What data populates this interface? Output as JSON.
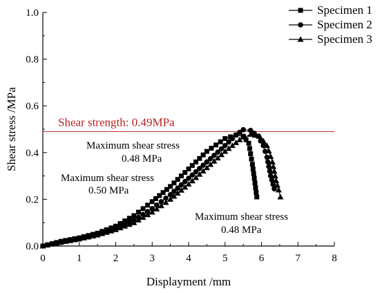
{
  "chart_data": {
    "type": "line",
    "xlabel": "Displayment /mm",
    "ylabel": "Shear stress /MPa",
    "xlim": [
      0,
      8
    ],
    "ylim": [
      0,
      1.0
    ],
    "x_ticks": [
      "0",
      "1",
      "2",
      "3",
      "4",
      "5",
      "6",
      "7",
      "8"
    ],
    "y_ticks": [
      "0.0",
      "0.2",
      "0.4",
      "0.6",
      "0.8",
      "1.0"
    ],
    "legend_position": "top-right",
    "grid": false,
    "series": [
      {
        "name": "Specimen 1",
        "marker": "square",
        "color": "#000000",
        "points": [
          [
            0,
            0
          ],
          [
            0.5,
            0.02
          ],
          [
            1,
            0.035
          ],
          [
            1.5,
            0.055
          ],
          [
            2,
            0.085
          ],
          [
            2.5,
            0.13
          ],
          [
            3,
            0.19
          ],
          [
            3.5,
            0.255
          ],
          [
            4,
            0.33
          ],
          [
            4.5,
            0.405
          ],
          [
            5,
            0.46
          ],
          [
            5.3,
            0.475
          ],
          [
            5.5,
            0.47
          ],
          [
            5.65,
            0.44
          ],
          [
            5.75,
            0.35
          ],
          [
            5.82,
            0.27
          ],
          [
            5.87,
            0.21
          ]
        ]
      },
      {
        "name": "Specimen 2",
        "marker": "circle",
        "color": "#000000",
        "points": [
          [
            0,
            0
          ],
          [
            0.5,
            0.018
          ],
          [
            1,
            0.032
          ],
          [
            1.5,
            0.05
          ],
          [
            2,
            0.075
          ],
          [
            2.5,
            0.11
          ],
          [
            3,
            0.16
          ],
          [
            3.5,
            0.22
          ],
          [
            4,
            0.29
          ],
          [
            4.5,
            0.36
          ],
          [
            5,
            0.43
          ],
          [
            5.3,
            0.475
          ],
          [
            5.5,
            0.498
          ],
          [
            5.7,
            0.495
          ],
          [
            5.9,
            0.47
          ],
          [
            6.05,
            0.43
          ],
          [
            6.15,
            0.38
          ],
          [
            6.25,
            0.3
          ],
          [
            6.35,
            0.245
          ]
        ]
      },
      {
        "name": "Specimen 3",
        "marker": "triangle",
        "color": "#000000",
        "points": [
          [
            0,
            0
          ],
          [
            0.5,
            0.016
          ],
          [
            1,
            0.03
          ],
          [
            1.5,
            0.047
          ],
          [
            2,
            0.07
          ],
          [
            2.5,
            0.1
          ],
          [
            3,
            0.145
          ],
          [
            3.5,
            0.2
          ],
          [
            4,
            0.265
          ],
          [
            4.5,
            0.335
          ],
          [
            5,
            0.405
          ],
          [
            5.4,
            0.455
          ],
          [
            5.7,
            0.478
          ],
          [
            5.95,
            0.47
          ],
          [
            6.15,
            0.43
          ],
          [
            6.3,
            0.36
          ],
          [
            6.4,
            0.28
          ],
          [
            6.47,
            0.24
          ],
          [
            6.52,
            0.21
          ]
        ]
      }
    ],
    "reference_line": {
      "label": "Shear strength: 0.49MPa",
      "y": 0.49,
      "color": "#b22222"
    },
    "annotations": [
      {
        "line1": "Maximum shear stress",
        "line2": "0.48 MPa"
      },
      {
        "line1": "Maximum shear stress",
        "line2": "0.50 MPa"
      },
      {
        "line1": "Maximum shear stress",
        "line2": "0.48 MPa"
      }
    ]
  }
}
